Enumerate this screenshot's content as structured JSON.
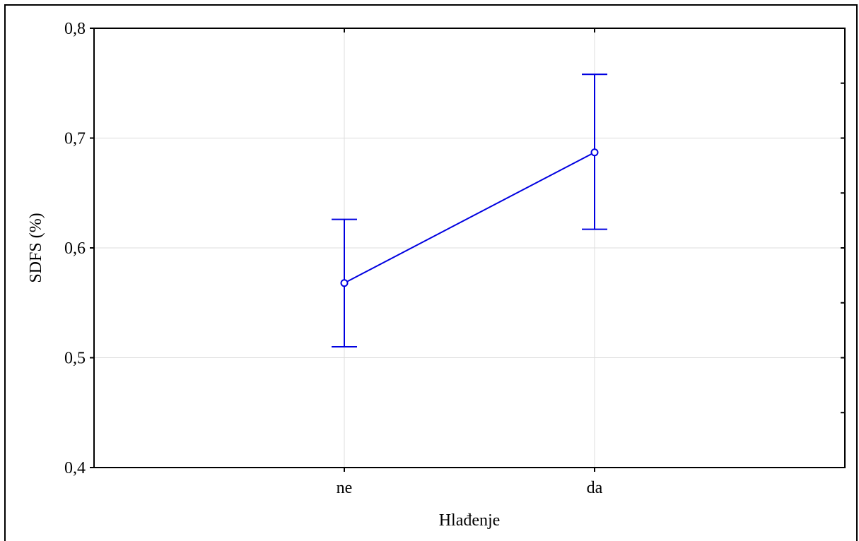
{
  "chart_data": {
    "type": "line",
    "categories": [
      "ne",
      "da"
    ],
    "series": [
      {
        "values": [
          0.568,
          0.687
        ],
        "error_low": [
          0.51,
          0.617
        ],
        "error_high": [
          0.626,
          0.758
        ],
        "color": "#0000e0"
      }
    ],
    "xlabel": "Hlađenje",
    "ylabel": "SDFS (%)",
    "ylim": [
      0.4,
      0.8
    ],
    "yticks": [
      0.4,
      0.5,
      0.6,
      0.7,
      0.8
    ],
    "ytick_labels": [
      "0,4",
      "0,5",
      "0,6",
      "0,7",
      "0,8"
    ],
    "grid": true,
    "grid_color": "#dcdcdc"
  }
}
